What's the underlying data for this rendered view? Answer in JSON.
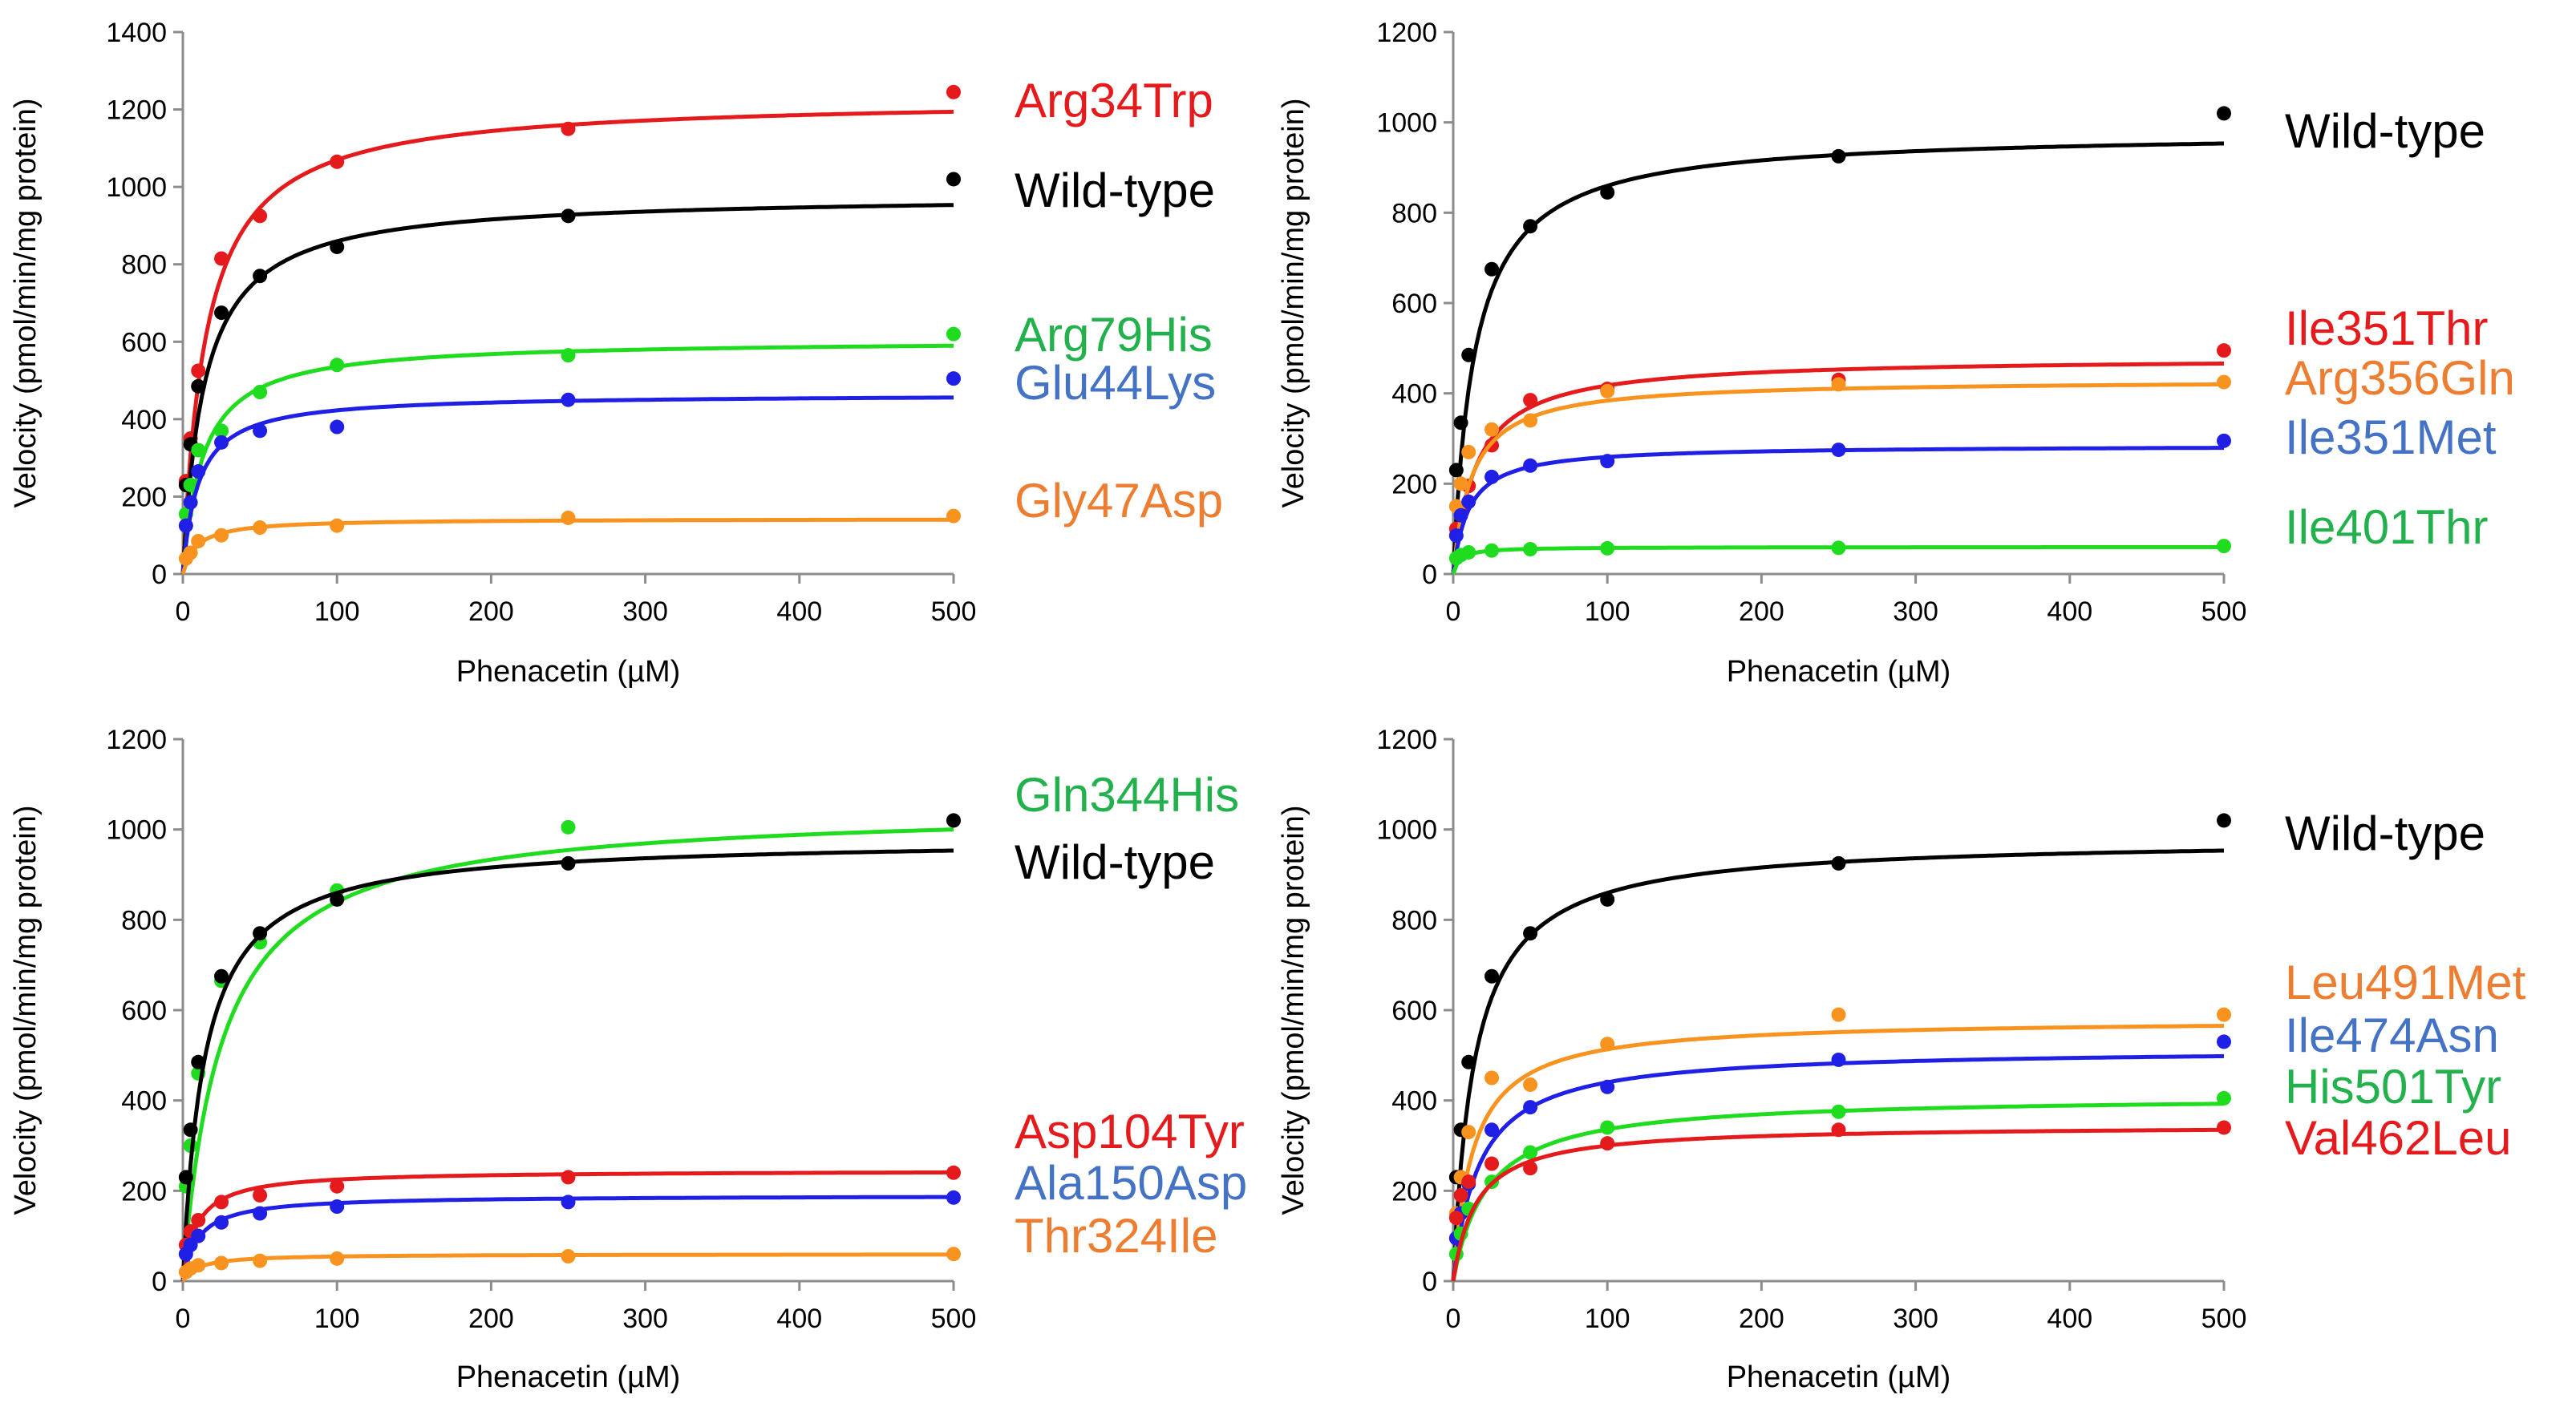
{
  "chart_data": [
    {
      "type": "scatter",
      "fit": "michaelis-menten",
      "xlabel": "Phenacetin (µM)",
      "ylabel": "Velocity (pmol/min/mg protein)",
      "xlim": [
        0,
        500
      ],
      "ylim": [
        0,
        1400
      ],
      "xticks": [
        0,
        100,
        200,
        300,
        400,
        500
      ],
      "yticks": [
        0,
        200,
        400,
        600,
        800,
        1000,
        1200,
        1400
      ],
      "x": [
        2,
        5,
        10,
        25,
        50,
        100,
        250,
        500
      ],
      "series": [
        {
          "name": "Arg34Trp",
          "color": "#e41a1c",
          "label_color": "#e41a1c",
          "y": [
            240,
            350,
            525,
            815,
            925,
            1065,
            1150,
            1245
          ],
          "vmax": 1230,
          "km": 15
        },
        {
          "name": "Wild-type",
          "color": "#000000",
          "label_color": "#000000",
          "y": [
            230,
            335,
            485,
            675,
            770,
            845,
            925,
            1020
          ],
          "vmax": 980,
          "km": 14
        },
        {
          "name": "Arg79His",
          "color": "#1fdc1f",
          "label_color": "#22b14c",
          "y": [
            155,
            230,
            320,
            370,
            470,
            540,
            565,
            620
          ],
          "vmax": 605,
          "km": 13
        },
        {
          "name": "Glu44Lys",
          "color": "#1f1fe6",
          "label_color": "#4472c4",
          "y": [
            125,
            185,
            265,
            340,
            370,
            380,
            450,
            505
          ],
          "vmax": 465,
          "km": 10
        },
        {
          "name": "Gly47Asp",
          "color": "#f7931e",
          "label_color": "#ed7d31",
          "y": [
            40,
            55,
            85,
            100,
            120,
            125,
            145,
            150
          ],
          "vmax": 143,
          "km": 9
        }
      ]
    },
    {
      "type": "scatter",
      "fit": "michaelis-menten",
      "xlabel": "Phenacetin (µM)",
      "ylabel": "Velocity (pmol/min/mg protein)",
      "xlim": [
        0,
        500
      ],
      "ylim": [
        0,
        1200
      ],
      "xticks": [
        0,
        100,
        200,
        300,
        400,
        500
      ],
      "yticks": [
        0,
        200,
        400,
        600,
        800,
        1000,
        1200
      ],
      "x": [
        2,
        5,
        10,
        25,
        50,
        100,
        250,
        500
      ],
      "series": [
        {
          "name": "Wild-type",
          "color": "#000000",
          "label_color": "#000000",
          "y": [
            230,
            335,
            485,
            675,
            770,
            845,
            925,
            1020
          ],
          "vmax": 980,
          "km": 14
        },
        {
          "name": "Ile351Thr",
          "color": "#e41a1c",
          "label_color": "#e41a1c",
          "y": [
            100,
            140,
            195,
            285,
            385,
            410,
            430,
            495
          ],
          "vmax": 480,
          "km": 15
        },
        {
          "name": "Arg356Gln",
          "color": "#f7931e",
          "label_color": "#ed7d31",
          "y": [
            150,
            200,
            270,
            320,
            340,
            405,
            420,
            425
          ],
          "vmax": 430,
          "km": 12
        },
        {
          "name": "Ile351Met",
          "color": "#1f1fe6",
          "label_color": "#4472c4",
          "y": [
            85,
            130,
            160,
            215,
            240,
            250,
            275,
            295
          ],
          "vmax": 285,
          "km": 10
        },
        {
          "name": "Ile401Thr",
          "color": "#1fdc1f",
          "label_color": "#22b14c",
          "y": [
            35,
            42,
            48,
            52,
            55,
            57,
            58,
            62
          ],
          "vmax": 60,
          "km": 4
        }
      ]
    },
    {
      "type": "scatter",
      "fit": "michaelis-menten",
      "xlabel": "Phenacetin (µM)",
      "ylabel": "Velocity (pmol/min/mg protein)",
      "xlim": [
        0,
        500
      ],
      "ylim": [
        0,
        1200
      ],
      "xticks": [
        0,
        100,
        200,
        300,
        400,
        500
      ],
      "yticks": [
        0,
        200,
        400,
        600,
        800,
        1000,
        1200
      ],
      "x": [
        2,
        5,
        10,
        25,
        50,
        100,
        250,
        500
      ],
      "series": [
        {
          "name": "Gln344His",
          "color": "#1fdc1f",
          "label_color": "#22b14c",
          "y": [
            210,
            300,
            460,
            665,
            750,
            865,
            1005,
            1020
          ],
          "vmax": 1050,
          "km": 25
        },
        {
          "name": "Wild-type",
          "color": "#000000",
          "label_color": "#000000",
          "y": [
            230,
            335,
            485,
            675,
            770,
            845,
            925,
            1020
          ],
          "vmax": 980,
          "km": 14
        },
        {
          "name": "Asp104Tyr",
          "color": "#e41a1c",
          "label_color": "#e41a1c",
          "y": [
            80,
            110,
            135,
            175,
            190,
            210,
            230,
            240
          ],
          "vmax": 245,
          "km": 9
        },
        {
          "name": "Ala150Asp",
          "color": "#1f1fe6",
          "label_color": "#4472c4",
          "y": [
            60,
            80,
            100,
            130,
            150,
            165,
            175,
            185
          ],
          "vmax": 190,
          "km": 10
        },
        {
          "name": "Thr324Ile",
          "color": "#f7931e",
          "label_color": "#ed7d31",
          "y": [
            20,
            28,
            35,
            40,
            45,
            50,
            55,
            60
          ],
          "vmax": 60,
          "km": 10
        }
      ]
    },
    {
      "type": "scatter",
      "fit": "michaelis-menten",
      "xlabel": "Phenacetin (µM)",
      "ylabel": "Velocity (pmol/min/mg protein)",
      "xlim": [
        0,
        500
      ],
      "ylim": [
        0,
        1200
      ],
      "xticks": [
        0,
        100,
        200,
        300,
        400,
        500
      ],
      "yticks": [
        0,
        200,
        400,
        600,
        800,
        1000,
        1200
      ],
      "x": [
        2,
        5,
        10,
        25,
        50,
        100,
        250,
        500
      ],
      "series": [
        {
          "name": "Wild-type",
          "color": "#000000",
          "label_color": "#000000",
          "y": [
            230,
            335,
            485,
            675,
            770,
            845,
            925,
            1020
          ],
          "vmax": 980,
          "km": 14
        },
        {
          "name": "Leu491Met",
          "color": "#f7931e",
          "label_color": "#ed7d31",
          "y": [
            150,
            230,
            330,
            450,
            435,
            525,
            590,
            590
          ],
          "vmax": 580,
          "km": 13
        },
        {
          "name": "Ile474Asn",
          "color": "#1f1fe6",
          "label_color": "#4472c4",
          "y": [
            95,
            150,
            215,
            335,
            385,
            430,
            490,
            530
          ],
          "vmax": 515,
          "km": 17
        },
        {
          "name": "His501Tyr",
          "color": "#1fdc1f",
          "label_color": "#22b14c",
          "y": [
            60,
            105,
            160,
            220,
            285,
            340,
            375,
            405
          ],
          "vmax": 410,
          "km": 22
        },
        {
          "name": "Val462Leu",
          "color": "#e41a1c",
          "label_color": "#e41a1c",
          "y": [
            140,
            190,
            220,
            260,
            250,
            305,
            335,
            340
          ],
          "vmax": 345,
          "km": 15
        }
      ]
    }
  ]
}
